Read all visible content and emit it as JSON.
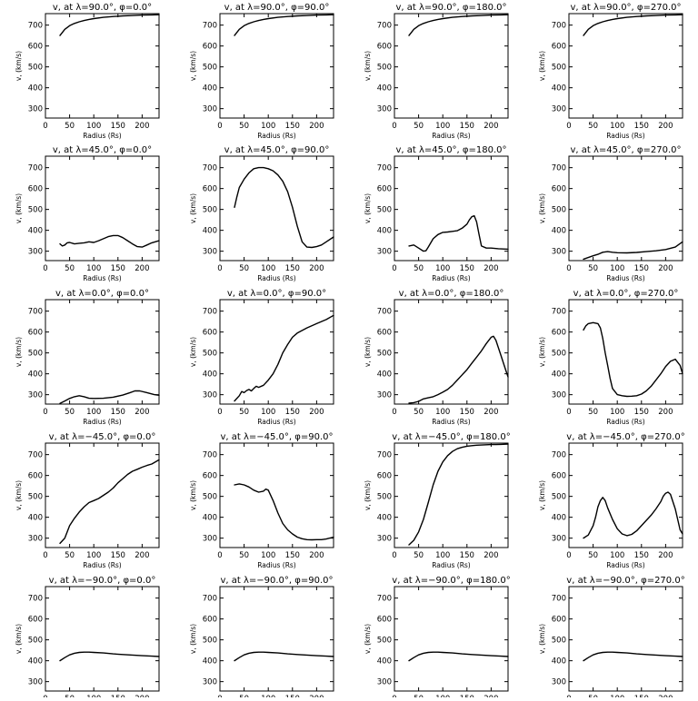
{
  "figure": {
    "xlabel": "Radius (Rs)",
    "ylabel": "v, (km/s)",
    "xticks": [
      0,
      50,
      100,
      150,
      200
    ],
    "yticks": [
      300,
      400,
      500,
      600,
      700
    ],
    "xlim": [
      0,
      235
    ],
    "ylim": [
      255,
      755
    ],
    "line_color": "#000000"
  },
  "chart_data": [
    {
      "type": "line",
      "title": "v, at λ=90.0°, φ=0.0°",
      "xlabel": "Radius (Rs)",
      "ylabel": "v, (km/s)",
      "xlim": [
        0,
        235
      ],
      "ylim": [
        255,
        755
      ],
      "x": [
        30,
        40,
        50,
        60,
        70,
        80,
        90,
        100,
        120,
        140,
        160,
        180,
        200,
        220,
        235
      ],
      "y": [
        650,
        680,
        697,
        708,
        716,
        722,
        727,
        731,
        737,
        741,
        744,
        746,
        748,
        749,
        750
      ]
    },
    {
      "type": "line",
      "title": "v, at λ=90.0°, φ=90.0°",
      "xlabel": "Radius (Rs)",
      "ylabel": "v, (km/s)",
      "xlim": [
        0,
        235
      ],
      "ylim": [
        255,
        755
      ],
      "x": [
        30,
        40,
        50,
        60,
        70,
        80,
        90,
        100,
        120,
        140,
        160,
        180,
        200,
        220,
        235
      ],
      "y": [
        650,
        680,
        697,
        708,
        716,
        722,
        727,
        731,
        737,
        741,
        744,
        746,
        748,
        749,
        750
      ]
    },
    {
      "type": "line",
      "title": "v, at λ=90.0°, φ=180.0°",
      "xlabel": "Radius (Rs)",
      "ylabel": "v, (km/s)",
      "xlim": [
        0,
        235
      ],
      "ylim": [
        255,
        755
      ],
      "x": [
        30,
        40,
        50,
        60,
        70,
        80,
        90,
        100,
        120,
        140,
        160,
        180,
        200,
        220,
        235
      ],
      "y": [
        650,
        680,
        697,
        708,
        716,
        722,
        727,
        731,
        737,
        741,
        744,
        746,
        748,
        749,
        750
      ]
    },
    {
      "type": "line",
      "title": "v, at λ=90.0°, φ=270.0°",
      "xlabel": "Radius (Rs)",
      "ylabel": "v, (km/s)",
      "xlim": [
        0,
        235
      ],
      "ylim": [
        255,
        755
      ],
      "x": [
        30,
        40,
        50,
        60,
        70,
        80,
        90,
        100,
        120,
        140,
        160,
        180,
        200,
        220,
        235
      ],
      "y": [
        650,
        680,
        697,
        708,
        716,
        722,
        727,
        731,
        737,
        741,
        744,
        746,
        748,
        749,
        750
      ]
    },
    {
      "type": "line",
      "title": "v, at λ=45.0°, φ=0.0°",
      "xlabel": "Radius (Rs)",
      "ylabel": "v, (km/s)",
      "xlim": [
        0,
        235
      ],
      "ylim": [
        255,
        755
      ],
      "x": [
        30,
        35,
        40,
        45,
        50,
        60,
        70,
        80,
        90,
        100,
        110,
        120,
        130,
        140,
        150,
        160,
        170,
        180,
        190,
        200,
        210,
        220,
        235
      ],
      "y": [
        335,
        325,
        330,
        340,
        342,
        335,
        338,
        340,
        345,
        342,
        350,
        360,
        370,
        375,
        375,
        365,
        350,
        335,
        322,
        320,
        330,
        340,
        350
      ]
    },
    {
      "type": "line",
      "title": "v, at λ=45.0°, φ=90.0°",
      "xlabel": "Radius (Rs)",
      "ylabel": "v, (km/s)",
      "xlim": [
        0,
        235
      ],
      "ylim": [
        255,
        755
      ],
      "x": [
        30,
        35,
        40,
        50,
        60,
        70,
        80,
        90,
        100,
        110,
        120,
        130,
        140,
        150,
        160,
        170,
        180,
        190,
        200,
        210,
        220,
        235
      ],
      "y": [
        510,
        560,
        605,
        645,
        675,
        695,
        700,
        700,
        695,
        685,
        665,
        635,
        585,
        510,
        420,
        345,
        320,
        318,
        322,
        330,
        345,
        368
      ]
    },
    {
      "type": "line",
      "title": "v, at λ=45.0°, φ=180.0°",
      "xlabel": "Radius (Rs)",
      "ylabel": "v, (km/s)",
      "xlim": [
        0,
        235
      ],
      "ylim": [
        255,
        755
      ],
      "x": [
        30,
        40,
        50,
        60,
        65,
        70,
        80,
        90,
        100,
        110,
        120,
        130,
        140,
        150,
        155,
        160,
        165,
        170,
        175,
        180,
        190,
        200,
        215,
        235
      ],
      "y": [
        325,
        330,
        315,
        300,
        302,
        320,
        360,
        380,
        390,
        392,
        395,
        398,
        410,
        430,
        450,
        465,
        470,
        440,
        380,
        325,
        315,
        315,
        312,
        310
      ]
    },
    {
      "type": "line",
      "title": "v, at λ=45.0°, φ=270.0°",
      "xlabel": "Radius (Rs)",
      "ylabel": "v, (km/s)",
      "xlim": [
        0,
        235
      ],
      "ylim": [
        255,
        755
      ],
      "x": [
        30,
        40,
        50,
        60,
        70,
        80,
        90,
        100,
        120,
        140,
        160,
        180,
        200,
        220,
        235
      ],
      "y": [
        262,
        270,
        278,
        285,
        295,
        298,
        295,
        293,
        292,
        294,
        298,
        302,
        308,
        320,
        345
      ]
    },
    {
      "type": "line",
      "title": "v, at λ=0.0°, φ=0.0°",
      "xlabel": "Radius (Rs)",
      "ylabel": "v, (km/s)",
      "xlim": [
        0,
        235
      ],
      "ylim": [
        255,
        755
      ],
      "x": [
        30,
        40,
        50,
        60,
        70,
        80,
        90,
        100,
        120,
        140,
        160,
        175,
        185,
        195,
        210,
        225,
        235
      ],
      "y": [
        258,
        270,
        282,
        290,
        295,
        290,
        283,
        282,
        283,
        288,
        298,
        310,
        318,
        318,
        310,
        300,
        297
      ]
    },
    {
      "type": "line",
      "title": "v, at λ=0.0°, φ=90.0°",
      "xlabel": "Radius (Rs)",
      "ylabel": "v, (km/s)",
      "xlim": [
        0,
        235
      ],
      "ylim": [
        255,
        755
      ],
      "x": [
        30,
        40,
        45,
        50,
        55,
        60,
        65,
        70,
        75,
        80,
        90,
        100,
        110,
        120,
        130,
        140,
        150,
        160,
        180,
        200,
        220,
        235
      ],
      "y": [
        270,
        295,
        315,
        310,
        320,
        325,
        318,
        330,
        340,
        335,
        345,
        370,
        400,
        445,
        500,
        540,
        575,
        595,
        620,
        640,
        660,
        680
      ]
    },
    {
      "type": "line",
      "title": "v, at λ=0.0°, φ=180.0°",
      "xlabel": "Radius (Rs)",
      "ylabel": "v, (km/s)",
      "xlim": [
        0,
        235
      ],
      "ylim": [
        255,
        755
      ],
      "x": [
        30,
        40,
        50,
        60,
        70,
        80,
        90,
        100,
        110,
        120,
        130,
        140,
        150,
        160,
        170,
        180,
        190,
        200,
        205,
        210,
        220,
        230,
        235
      ],
      "y": [
        260,
        262,
        268,
        280,
        285,
        290,
        300,
        312,
        325,
        345,
        370,
        395,
        420,
        450,
        480,
        510,
        545,
        575,
        580,
        560,
        490,
        420,
        385
      ]
    },
    {
      "type": "line",
      "title": "v, at λ=0.0°, φ=270.0°",
      "xlabel": "Radius (Rs)",
      "ylabel": "v, (km/s)",
      "xlim": [
        0,
        235
      ],
      "ylim": [
        255,
        755
      ],
      "x": [
        30,
        35,
        40,
        50,
        60,
        65,
        70,
        75,
        80,
        85,
        90,
        100,
        110,
        120,
        130,
        140,
        150,
        160,
        170,
        180,
        190,
        200,
        210,
        220,
        230,
        235
      ],
      "y": [
        610,
        630,
        640,
        645,
        640,
        620,
        570,
        500,
        440,
        380,
        330,
        300,
        295,
        292,
        293,
        295,
        303,
        318,
        340,
        370,
        400,
        435,
        460,
        470,
        440,
        400
      ]
    },
    {
      "type": "line",
      "title": "v, at λ=−45.0°, φ=0.0°",
      "xlabel": "Radius (Rs)",
      "ylabel": "v, (km/s)",
      "xlim": [
        0,
        235
      ],
      "ylim": [
        255,
        755
      ],
      "x": [
        30,
        40,
        50,
        60,
        70,
        80,
        90,
        100,
        110,
        120,
        130,
        140,
        150,
        160,
        170,
        180,
        190,
        200,
        210,
        220,
        235
      ],
      "y": [
        275,
        300,
        360,
        395,
        425,
        450,
        470,
        480,
        490,
        505,
        520,
        540,
        565,
        585,
        605,
        620,
        630,
        640,
        648,
        655,
        675
      ]
    },
    {
      "type": "line",
      "title": "v, at λ=−45.0°, φ=90.0°",
      "xlabel": "Radius (Rs)",
      "ylabel": "v, (km/s)",
      "xlim": [
        0,
        235
      ],
      "ylim": [
        255,
        755
      ],
      "x": [
        30,
        40,
        50,
        60,
        70,
        80,
        90,
        95,
        100,
        110,
        120,
        130,
        140,
        150,
        160,
        170,
        180,
        190,
        200,
        210,
        220,
        235
      ],
      "y": [
        555,
        560,
        555,
        545,
        530,
        520,
        525,
        535,
        530,
        480,
        420,
        370,
        340,
        320,
        305,
        297,
        293,
        292,
        293,
        293,
        296,
        305
      ]
    },
    {
      "type": "line",
      "title": "v, at λ=−45.0°, φ=180.0°",
      "xlabel": "Radius (Rs)",
      "ylabel": "v, (km/s)",
      "xlim": [
        0,
        235
      ],
      "ylim": [
        255,
        755
      ],
      "x": [
        30,
        40,
        50,
        60,
        70,
        80,
        90,
        100,
        110,
        120,
        130,
        140,
        150,
        160,
        170,
        180,
        190,
        200,
        210,
        220,
        235
      ],
      "y": [
        268,
        290,
        330,
        390,
        470,
        555,
        620,
        665,
        695,
        715,
        728,
        735,
        740,
        743,
        745,
        746,
        747,
        748,
        748,
        749,
        750
      ]
    },
    {
      "type": "line",
      "title": "v, at λ=−45.0°, φ=270.0°",
      "xlabel": "Radius (Rs)",
      "ylabel": "v, (km/s)",
      "xlim": [
        0,
        235
      ],
      "ylim": [
        255,
        755
      ],
      "x": [
        30,
        40,
        50,
        55,
        60,
        65,
        70,
        75,
        80,
        90,
        100,
        110,
        120,
        130,
        140,
        150,
        160,
        170,
        180,
        190,
        195,
        200,
        205,
        210,
        220,
        230,
        235
      ],
      "y": [
        300,
        315,
        360,
        400,
        450,
        480,
        495,
        480,
        445,
        390,
        345,
        320,
        312,
        318,
        335,
        360,
        385,
        410,
        440,
        475,
        500,
        515,
        520,
        510,
        440,
        340,
        320
      ]
    },
    {
      "type": "line",
      "title": "v, at λ=−90.0°, φ=0.0°",
      "xlabel": "Radius (Rs)",
      "ylabel": "v, (km/s)",
      "xlim": [
        0,
        235
      ],
      "ylim": [
        255,
        755
      ],
      "x": [
        30,
        40,
        50,
        60,
        70,
        80,
        90,
        100,
        120,
        140,
        160,
        180,
        200,
        220,
        235
      ],
      "y": [
        400,
        415,
        428,
        436,
        440,
        441,
        441,
        440,
        437,
        433,
        430,
        427,
        424,
        422,
        420
      ]
    },
    {
      "type": "line",
      "title": "v, at λ=−90.0°, φ=90.0°",
      "xlabel": "Radius (Rs)",
      "ylabel": "v, (km/s)",
      "xlim": [
        0,
        235
      ],
      "ylim": [
        255,
        755
      ],
      "x": [
        30,
        40,
        50,
        60,
        70,
        80,
        90,
        100,
        120,
        140,
        160,
        180,
        200,
        220,
        235
      ],
      "y": [
        400,
        415,
        428,
        436,
        440,
        441,
        441,
        440,
        437,
        433,
        430,
        427,
        424,
        422,
        420
      ]
    },
    {
      "type": "line",
      "title": "v, at λ=−90.0°, φ=180.0°",
      "xlabel": "Radius (Rs)",
      "ylabel": "v, (km/s)",
      "xlim": [
        0,
        235
      ],
      "ylim": [
        255,
        755
      ],
      "x": [
        30,
        40,
        50,
        60,
        70,
        80,
        90,
        100,
        120,
        140,
        160,
        180,
        200,
        220,
        235
      ],
      "y": [
        400,
        415,
        428,
        436,
        440,
        441,
        441,
        440,
        437,
        433,
        430,
        427,
        424,
        422,
        420
      ]
    },
    {
      "type": "line",
      "title": "v, at λ=−90.0°, φ=270.0°",
      "xlabel": "Radius (Rs)",
      "ylabel": "v, (km/s)",
      "xlim": [
        0,
        235
      ],
      "ylim": [
        255,
        755
      ],
      "x": [
        30,
        40,
        50,
        60,
        70,
        80,
        90,
        100,
        120,
        140,
        160,
        180,
        200,
        220,
        235
      ],
      "y": [
        400,
        415,
        428,
        436,
        440,
        441,
        441,
        440,
        437,
        433,
        430,
        427,
        424,
        422,
        420
      ]
    }
  ]
}
